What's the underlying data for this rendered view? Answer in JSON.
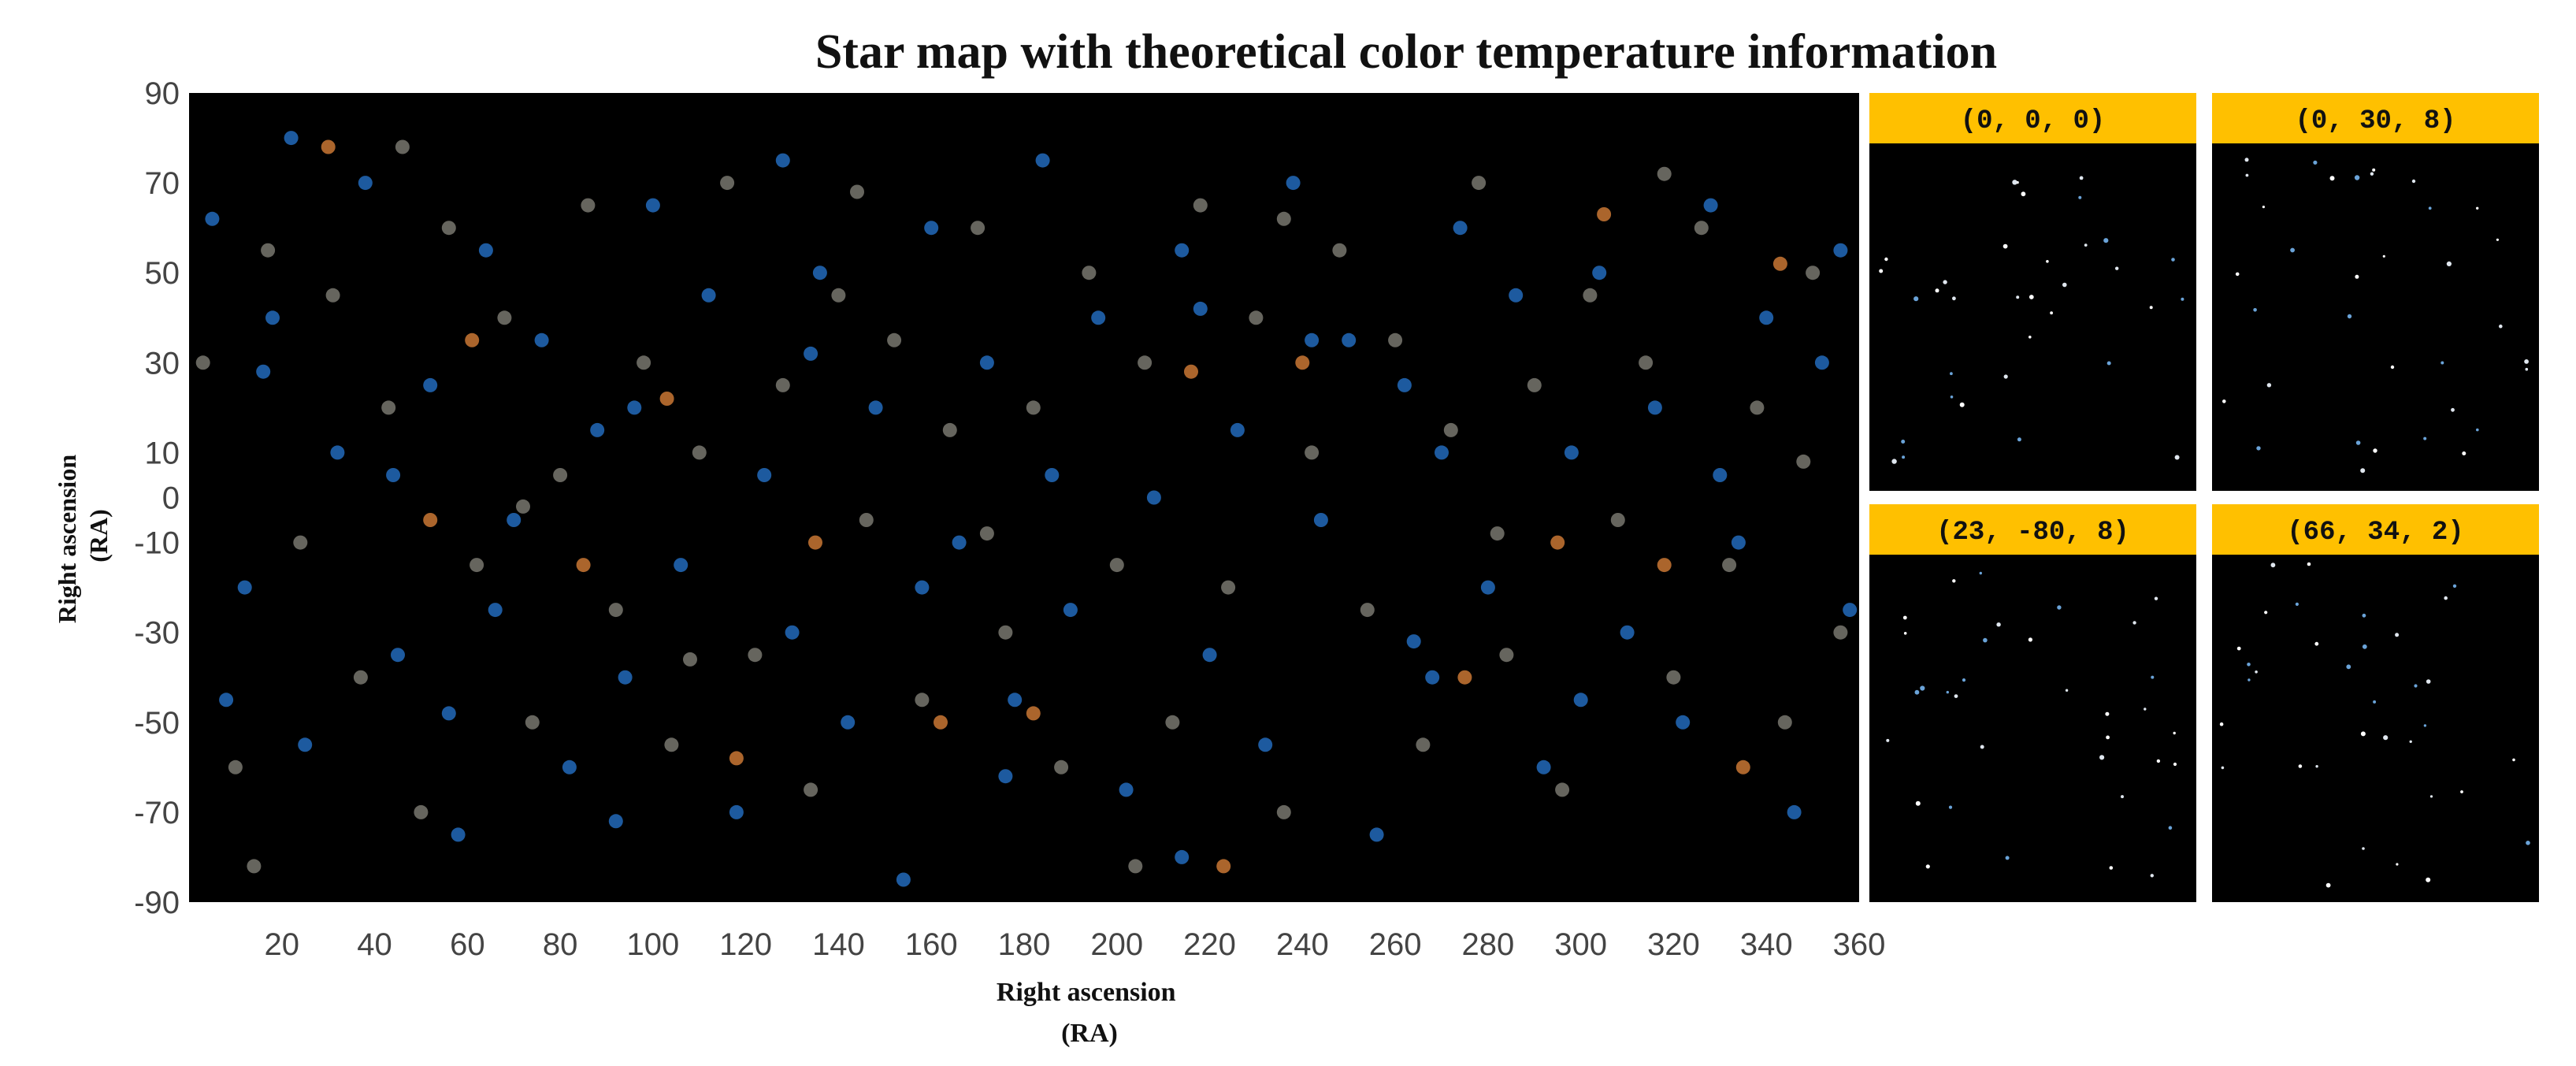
{
  "chart_data": {
    "type": "scatter",
    "title": "Star map with theoretical color temperature information",
    "xlabel": "Right ascension\n(RA)",
    "ylabel": "Right ascension\n(RA)",
    "xlim": [
      0,
      360
    ],
    "ylim": [
      -90,
      90
    ],
    "x_ticks": [
      20,
      40,
      60,
      80,
      100,
      120,
      140,
      160,
      180,
      200,
      220,
      240,
      260,
      280,
      300,
      320,
      340,
      360
    ],
    "y_ticks": [
      90,
      70,
      50,
      30,
      10,
      0,
      -10,
      -30,
      -50,
      -70,
      -90
    ],
    "grid": false,
    "background": "#000000",
    "colors": {
      "blue": "#1f5fa8",
      "gray": "#6b6a63",
      "orange": "#b46a2e"
    },
    "series": [
      {
        "color": "blue",
        "points": [
          [
            5,
            62
          ],
          [
            12,
            -20
          ],
          [
            18,
            40
          ],
          [
            25,
            -55
          ],
          [
            32,
            10
          ],
          [
            38,
            70
          ],
          [
            45,
            -35
          ],
          [
            52,
            25
          ],
          [
            58,
            -75
          ],
          [
            64,
            55
          ],
          [
            70,
            -5
          ],
          [
            76,
            35
          ],
          [
            82,
            -60
          ],
          [
            88,
            15
          ],
          [
            94,
            -40
          ],
          [
            100,
            65
          ],
          [
            106,
            -15
          ],
          [
            112,
            45
          ],
          [
            118,
            -70
          ],
          [
            124,
            5
          ],
          [
            130,
            -30
          ],
          [
            136,
            50
          ],
          [
            142,
            -50
          ],
          [
            148,
            20
          ],
          [
            154,
            -85
          ],
          [
            160,
            60
          ],
          [
            166,
            -10
          ],
          [
            172,
            30
          ],
          [
            178,
            -45
          ],
          [
            184,
            75
          ],
          [
            190,
            -25
          ],
          [
            196,
            40
          ],
          [
            202,
            -65
          ],
          [
            208,
            0
          ],
          [
            214,
            55
          ],
          [
            220,
            -35
          ],
          [
            226,
            15
          ],
          [
            232,
            -55
          ],
          [
            238,
            70
          ],
          [
            244,
            -5
          ],
          [
            250,
            35
          ],
          [
            256,
            -75
          ],
          [
            262,
            25
          ],
          [
            268,
            -40
          ],
          [
            274,
            60
          ],
          [
            280,
            -20
          ],
          [
            286,
            45
          ],
          [
            292,
            -60
          ],
          [
            298,
            10
          ],
          [
            304,
            50
          ],
          [
            310,
            -30
          ],
          [
            316,
            20
          ],
          [
            322,
            -50
          ],
          [
            328,
            65
          ],
          [
            334,
            -10
          ],
          [
            340,
            40
          ],
          [
            346,
            -70
          ],
          [
            352,
            30
          ],
          [
            358,
            -25
          ],
          [
            8,
            -45
          ],
          [
            22,
            80
          ],
          [
            44,
            5
          ],
          [
            66,
            -25
          ],
          [
            96,
            20
          ],
          [
            128,
            75
          ],
          [
            158,
            -20
          ],
          [
            186,
            5
          ],
          [
            214,
            -80
          ],
          [
            242,
            35
          ],
          [
            270,
            10
          ],
          [
            300,
            -45
          ],
          [
            330,
            5
          ],
          [
            356,
            55
          ],
          [
            16,
            28
          ],
          [
            56,
            -48
          ],
          [
            92,
            -72
          ],
          [
            134,
            32
          ],
          [
            176,
            -62
          ],
          [
            218,
            42
          ],
          [
            264,
            -32
          ]
        ]
      },
      {
        "color": "gray",
        "points": [
          [
            3,
            30
          ],
          [
            10,
            -60
          ],
          [
            17,
            55
          ],
          [
            24,
            -10
          ],
          [
            31,
            45
          ],
          [
            37,
            -40
          ],
          [
            43,
            20
          ],
          [
            50,
            -70
          ],
          [
            56,
            60
          ],
          [
            62,
            -15
          ],
          [
            68,
            40
          ],
          [
            74,
            -50
          ],
          [
            80,
            5
          ],
          [
            86,
            65
          ],
          [
            92,
            -25
          ],
          [
            98,
            30
          ],
          [
            104,
            -55
          ],
          [
            110,
            10
          ],
          [
            116,
            70
          ],
          [
            122,
            -35
          ],
          [
            128,
            25
          ],
          [
            134,
            -65
          ],
          [
            140,
            45
          ],
          [
            146,
            -5
          ],
          [
            152,
            35
          ],
          [
            158,
            -45
          ],
          [
            164,
            15
          ],
          [
            170,
            60
          ],
          [
            176,
            -30
          ],
          [
            182,
            20
          ],
          [
            188,
            -60
          ],
          [
            194,
            50
          ],
          [
            200,
            -15
          ],
          [
            206,
            30
          ],
          [
            212,
            -50
          ],
          [
            218,
            65
          ],
          [
            224,
            -20
          ],
          [
            230,
            40
          ],
          [
            236,
            -70
          ],
          [
            242,
            10
          ],
          [
            248,
            55
          ],
          [
            254,
            -25
          ],
          [
            260,
            35
          ],
          [
            266,
            -55
          ],
          [
            272,
            15
          ],
          [
            278,
            70
          ],
          [
            284,
            -35
          ],
          [
            290,
            25
          ],
          [
            296,
            -65
          ],
          [
            302,
            45
          ],
          [
            308,
            -5
          ],
          [
            314,
            30
          ],
          [
            320,
            -40
          ],
          [
            326,
            60
          ],
          [
            332,
            -15
          ],
          [
            338,
            20
          ],
          [
            344,
            -50
          ],
          [
            350,
            50
          ],
          [
            356,
            -30
          ],
          [
            14,
            -82
          ],
          [
            46,
            78
          ],
          [
            72,
            -2
          ],
          [
            108,
            -36
          ],
          [
            144,
            68
          ],
          [
            172,
            -8
          ],
          [
            204,
            -82
          ],
          [
            236,
            62
          ],
          [
            282,
            -8
          ],
          [
            318,
            72
          ],
          [
            348,
            8
          ]
        ]
      },
      {
        "color": "orange",
        "points": [
          [
            30,
            78
          ],
          [
            61,
            35
          ],
          [
            85,
            -15
          ],
          [
            103,
            22
          ],
          [
            135,
            -10
          ],
          [
            162,
            -50
          ],
          [
            216,
            28
          ],
          [
            223,
            -82
          ],
          [
            240,
            30
          ],
          [
            275,
            -40
          ],
          [
            295,
            -10
          ],
          [
            305,
            63
          ],
          [
            318,
            -15
          ],
          [
            335,
            -60
          ],
          [
            343,
            52
          ],
          [
            118,
            -58
          ],
          [
            52,
            -5
          ],
          [
            182,
            -48
          ]
        ]
      }
    ]
  },
  "insets": [
    {
      "label": "(0, 0, 0)"
    },
    {
      "label": "(0, 30, 8)"
    },
    {
      "label": "(23, -80, 8)"
    },
    {
      "label": "(66, 34, 2)"
    }
  ],
  "inset_style": {
    "header_color": "#ffc000",
    "panel_color": "#000000",
    "star_colors": [
      "#ffffff",
      "#dfe6ee",
      "#6aa3d8"
    ]
  }
}
